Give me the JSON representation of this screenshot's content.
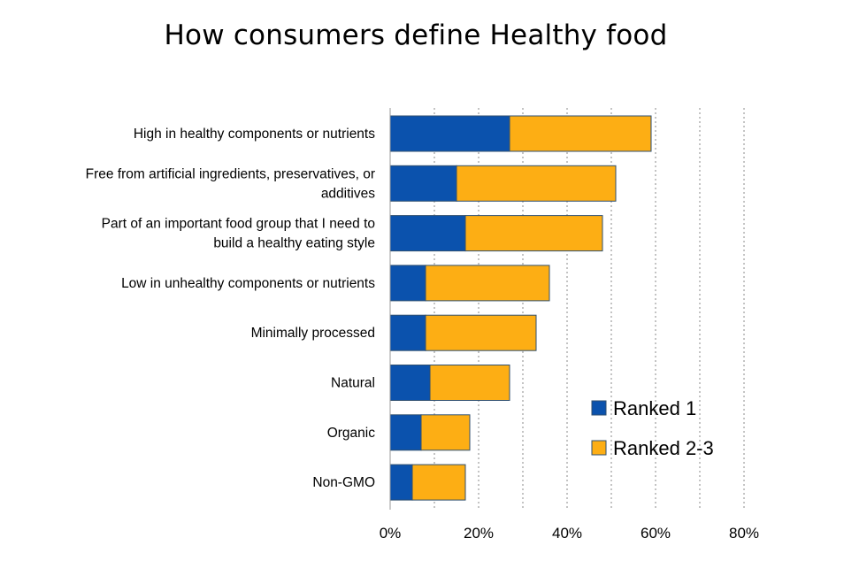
{
  "chart_data": {
    "type": "bar",
    "orientation": "horizontal",
    "stacked": true,
    "title": "How consumers define Healthy food",
    "categories": [
      [
        "High in healthy components or nutrients"
      ],
      [
        "Free from artificial ingredients, preservatives, or",
        "additives"
      ],
      [
        "Part of an important food group that I need to",
        "build a healthy eating style"
      ],
      [
        "Low in unhealthy components or nutrients"
      ],
      [
        "Minimally processed"
      ],
      [
        "Natural"
      ],
      [
        "Organic"
      ],
      [
        "Non-GMO"
      ]
    ],
    "series": [
      {
        "name": "Ranked 1",
        "color": "#0B52AD",
        "values": [
          27,
          15,
          17,
          8,
          8,
          9,
          7,
          5
        ]
      },
      {
        "name": "Ranked 2-3",
        "color": "#FDAE14",
        "values": [
          32,
          36,
          31,
          28,
          25,
          18,
          11,
          12
        ]
      }
    ],
    "xlim": [
      0,
      80
    ],
    "xticks": [
      0,
      20,
      40,
      60,
      80
    ],
    "xtick_labels": [
      "0%",
      "20%",
      "40%",
      "60%",
      "80%"
    ],
    "gridlines": "vertical dotted every 10%",
    "legend_position": "bottom-right"
  }
}
